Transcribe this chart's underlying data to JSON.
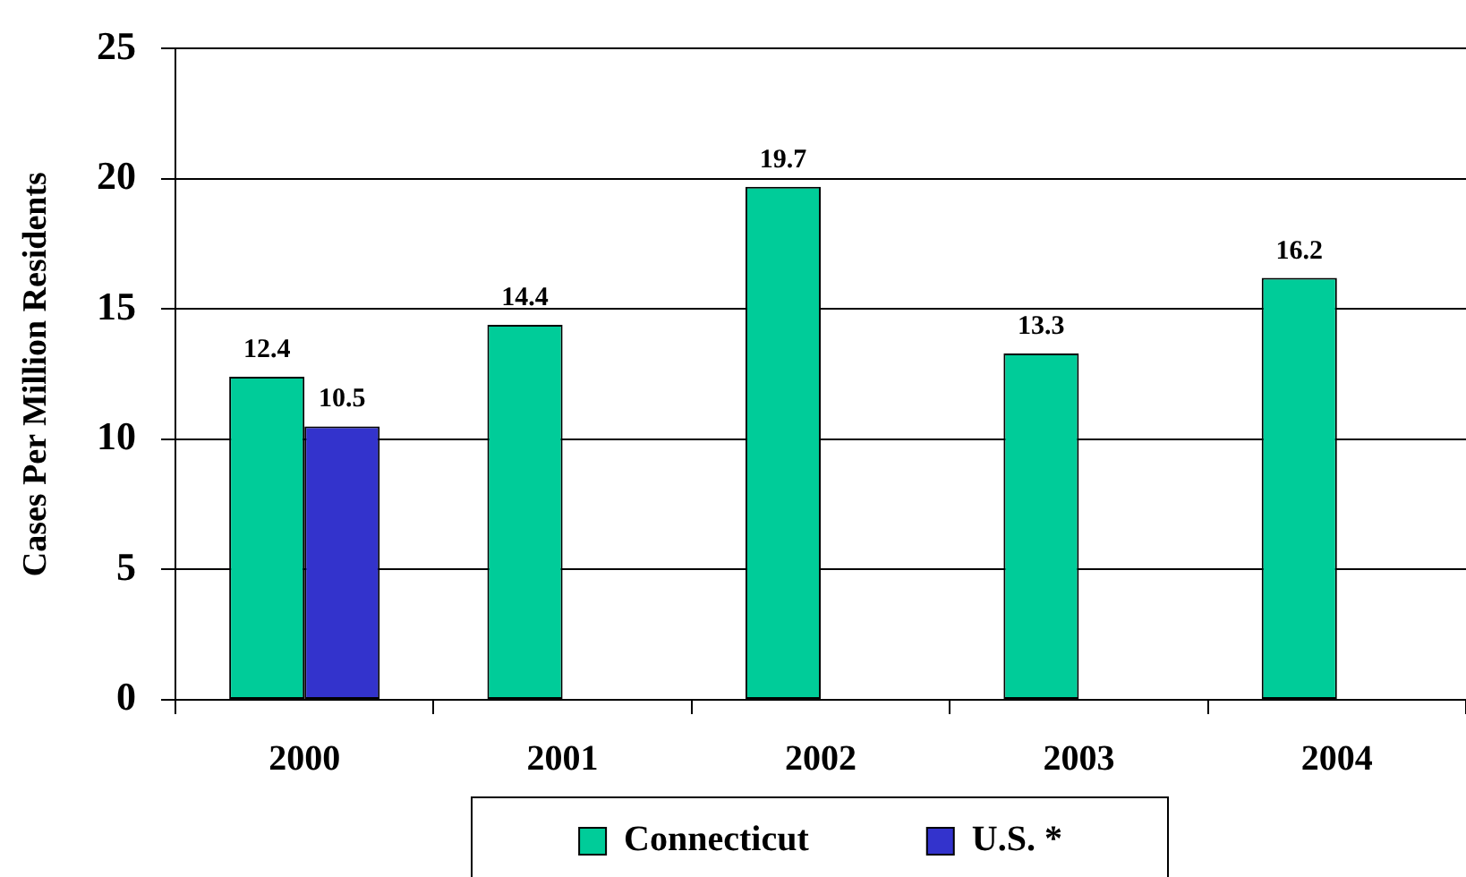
{
  "chart_data": {
    "type": "bar",
    "ylabel": "Cases Per Million Residents",
    "categories": [
      "2000",
      "2001",
      "2002",
      "2003",
      "2004"
    ],
    "series": [
      {
        "name": "Connecticut",
        "color": "#00cc99",
        "values": [
          12.4,
          14.4,
          19.7,
          13.3,
          16.2
        ]
      },
      {
        "name": "U.S. *",
        "color": "#3333cc",
        "values": [
          10.5,
          null,
          null,
          null,
          null
        ]
      }
    ],
    "ylim": [
      0,
      25
    ],
    "yticks": [
      0,
      5,
      10,
      15,
      20,
      25
    ],
    "grid": "y",
    "legend": "bottom",
    "data_labels": true
  }
}
